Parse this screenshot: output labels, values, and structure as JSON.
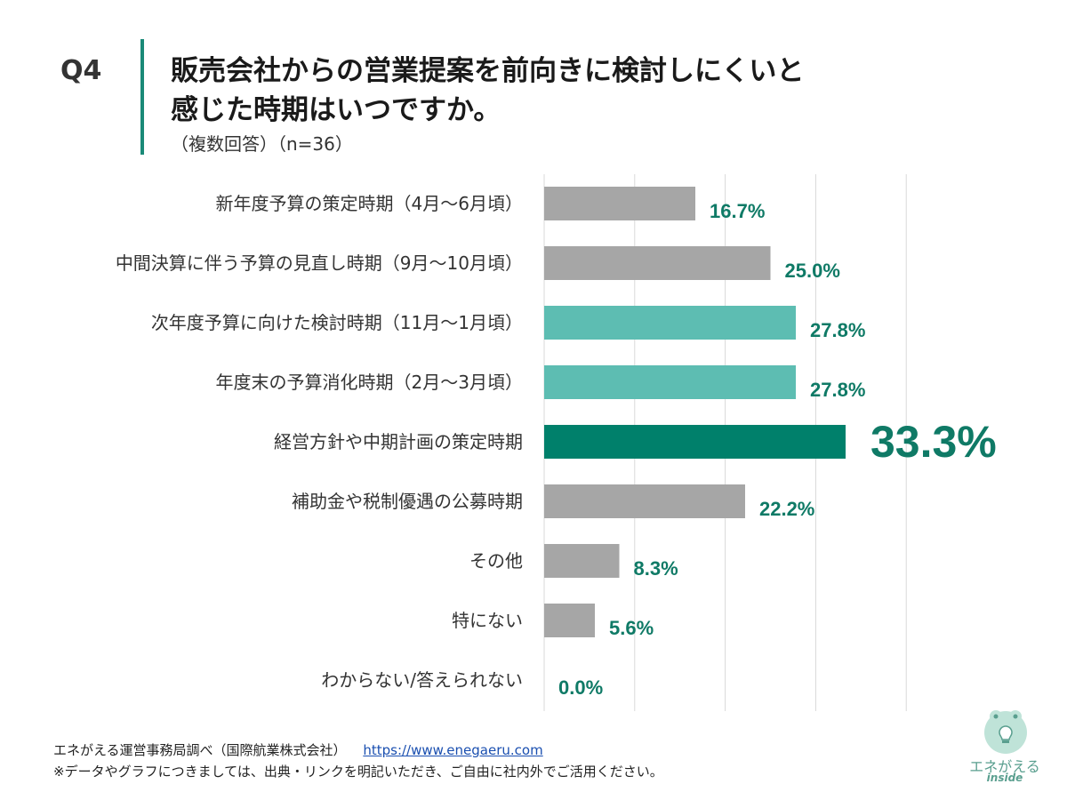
{
  "question": {
    "number": "Q4",
    "title_line1": "販売会社からの営業提案を前向きに検討しにくいと",
    "title_line2": "感じた時期はいつですか。",
    "subtitle": "（複数回答）（n=36）"
  },
  "chart_data": {
    "type": "bar",
    "orientation": "horizontal",
    "categories": [
      "新年度予算の策定時期（4月～6月頃）",
      "中間決算に伴う予算の見直し時期（9月～10月頃）",
      "次年度予算に向けた検討時期（11月～1月頃）",
      "年度末の予算消化時期（2月～3月頃）",
      "経営方針や中期計画の策定時期",
      "補助金や税制優遇の公募時期",
      "その他",
      "特にない",
      "わからない/答えられない"
    ],
    "values": [
      16.7,
      25.0,
      27.8,
      27.8,
      33.3,
      22.2,
      8.3,
      5.6,
      0.0
    ],
    "value_labels": [
      "16.7%",
      "25.0%",
      "27.8%",
      "27.8%",
      "33.3%",
      "22.2%",
      "8.3%",
      "5.6%",
      "0.0%"
    ],
    "bar_colors": [
      "#a6a6a6",
      "#a6a6a6",
      "#5dbdb2",
      "#5dbdb2",
      "#00806b",
      "#a6a6a6",
      "#a6a6a6",
      "#a6a6a6",
      "#a6a6a6"
    ],
    "highlight_index": 4,
    "label_color": "#0f7a66",
    "xlim": [
      0,
      40
    ],
    "grid": true
  },
  "footer": {
    "source": "エネがえる運営事務局調べ（国際航業株式会社）",
    "url": "https://www.enegaeru.com",
    "note": "※データやグラフにつきましては、出典・リンクを明記いただき、ご自由に社内外でご活用ください。"
  },
  "logo": {
    "name": "エネがえる",
    "sub": "inside",
    "icon": "frog-lightbulb-icon",
    "color": "#5a9f8f"
  }
}
